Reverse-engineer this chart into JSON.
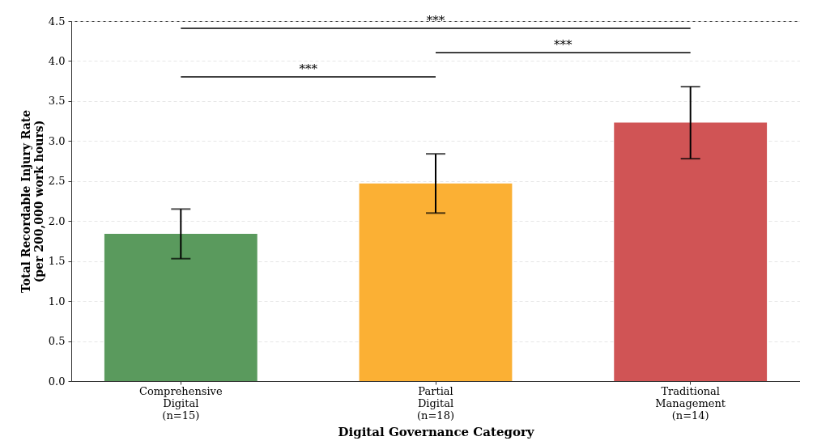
{
  "chart_data": {
    "type": "bar",
    "categories": [
      "Comprehensive\nDigital\n(n=15)",
      "Partial\nDigital\n(n=18)",
      "Traditional\nManagement\n(n=14)"
    ],
    "values": [
      1.84,
      2.47,
      3.23
    ],
    "errors": [
      0.31,
      0.37,
      0.45
    ],
    "colors": [
      "#5a9a5d",
      "#fbb034",
      "#d05455"
    ],
    "xlabel": "Digital Governance Category",
    "ylabel": "Total Recordable Injury Rate\n(per 200,000 work hours)",
    "ylim": [
      0,
      4.5
    ],
    "yticks": [
      {
        "value": 0,
        "label": "0.0"
      },
      0.5,
      {
        "value": 1,
        "label": "1.0"
      },
      1.5,
      {
        "value": 2,
        "label": "2.0"
      },
      2.5,
      {
        "value": 3,
        "label": "3.0"
      },
      3.5,
      {
        "value": 4,
        "label": "4.0"
      },
      4.5
    ],
    "grid": "y",
    "annotations": [
      "***",
      "***",
      "***"
    ]
  }
}
